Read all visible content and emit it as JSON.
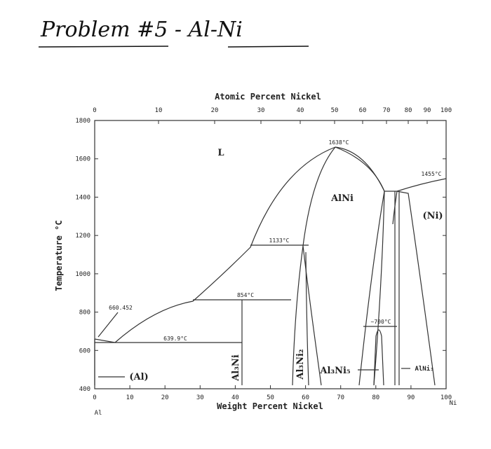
{
  "header": {
    "title": "Problem #5 - Al-Ni"
  },
  "diagram": {
    "top_axis_label": "Atomic Percent Nickel",
    "bottom_axis_label": "Weight Percent Nickel",
    "left_axis_label": "Temperature °C",
    "left_element": "Al",
    "right_element": "Ni",
    "top_ticks": [
      "0",
      "10",
      "20",
      "30",
      "40",
      "50",
      "60",
      "70",
      "80",
      "90",
      "100"
    ],
    "bottom_ticks": [
      "0",
      "10",
      "20",
      "30",
      "40",
      "50",
      "60",
      "70",
      "80",
      "90",
      "100"
    ],
    "left_ticks": [
      "400",
      "600",
      "800",
      "1000",
      "1200",
      "1400",
      "1600",
      "1800"
    ],
    "regions": [
      "L",
      "AlNi",
      "(Ni)",
      "(Al)",
      "Al₃Ni",
      "Al₃Ni₂",
      "Al₃Ni₅",
      "AlNi₃"
    ],
    "annotations": [
      "1638°C",
      "1455°C",
      "1133°C",
      "854°C",
      "639.9°C",
      "660.452",
      "~700°C"
    ]
  }
}
